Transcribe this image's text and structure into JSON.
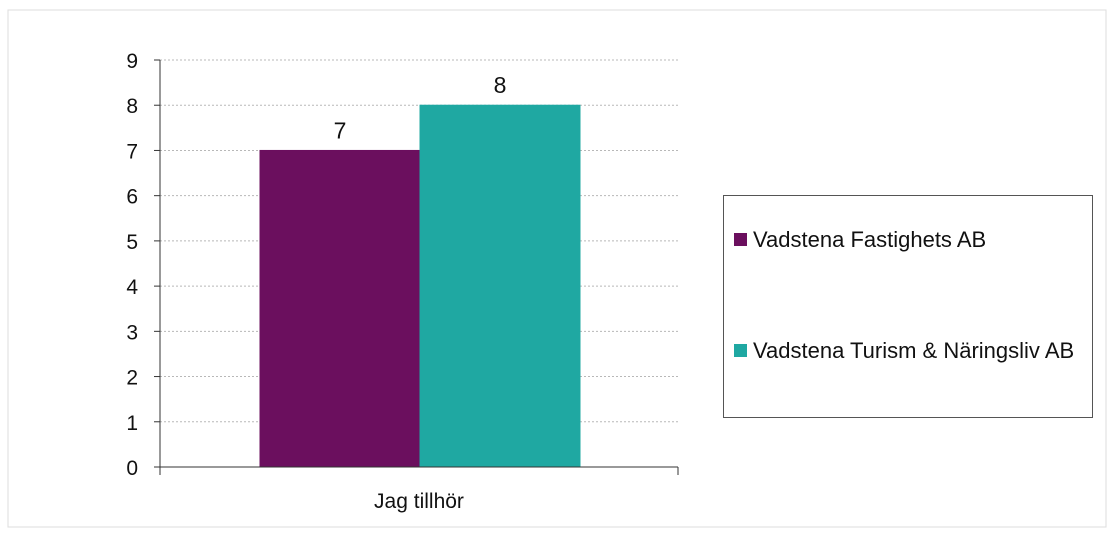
{
  "chart_data": {
    "type": "bar",
    "categories": [
      "Jag tillhör"
    ],
    "series": [
      {
        "name": "Vadstena Fastighets AB",
        "values": [
          7
        ],
        "color": "#6b0f5e"
      },
      {
        "name": "Vadstena Turism & Näringsliv AB",
        "values": [
          8
        ],
        "color": "#1fa8a2"
      }
    ],
    "yticks": [
      "0",
      "1",
      "2",
      "3",
      "4",
      "5",
      "6",
      "7",
      "8",
      "9"
    ],
    "data_labels": [
      "7",
      "8"
    ],
    "ylim": [
      0,
      9
    ],
    "grid": true,
    "legend_position": "right"
  }
}
